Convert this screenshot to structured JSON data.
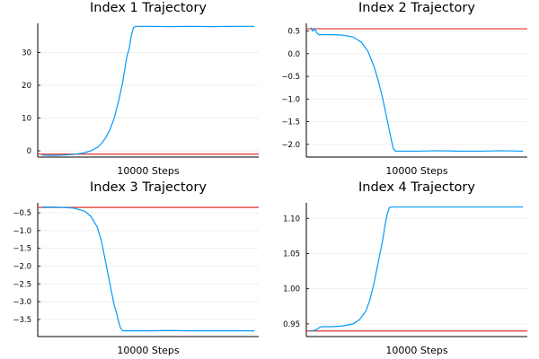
{
  "colors": {
    "series": "#009AFA",
    "reference": "#E0302A"
  },
  "chart_data": [
    {
      "type": "line",
      "title": "Index 1 Trajectory",
      "xlabel": "10000 Steps",
      "ylabel": "",
      "ylim": [
        -1.9,
        38.9
      ],
      "yticks": [
        0,
        10,
        20,
        30
      ],
      "ytick_labels": [
        "0",
        "10",
        "20",
        "30"
      ],
      "grid": true,
      "x": [
        0,
        0.05,
        0.1,
        0.15,
        0.2,
        0.23,
        0.26,
        0.28,
        0.3,
        0.32,
        0.34,
        0.36,
        0.38,
        0.39,
        0.4,
        0.41,
        0.42,
        0.43,
        0.44,
        0.5,
        0.6,
        0.7,
        0.8,
        0.9,
        1.0
      ],
      "series": [
        {
          "values": [
            -1.3,
            -1.4,
            -1.3,
            -1.1,
            -0.6,
            0.0,
            1.0,
            2.2,
            4.0,
            6.5,
            10.0,
            15.0,
            21.0,
            25.0,
            29.0,
            31.0,
            35.0,
            37.5,
            38.0,
            38.0,
            37.9,
            38.0,
            37.9,
            38.0,
            38.0
          ]
        }
      ],
      "reference": -1.0
    },
    {
      "type": "line",
      "title": "Index 2 Trajectory",
      "xlabel": "10000 Steps",
      "ylabel": "",
      "ylim": [
        -2.28,
        0.67
      ],
      "yticks": [
        -2.0,
        -1.5,
        -1.0,
        -0.5,
        0.0,
        0.5
      ],
      "ytick_labels": [
        "−2.0",
        "−1.5",
        "−1.0",
        "−0.5",
        "0.0",
        "0.5"
      ],
      "grid": true,
      "x": [
        0,
        0.01,
        0.02,
        0.03,
        0.04,
        0.06,
        0.1,
        0.15,
        0.2,
        0.24,
        0.27,
        0.3,
        0.32,
        0.34,
        0.36,
        0.38,
        0.39,
        0.4,
        0.41,
        0.5,
        0.6,
        0.7,
        0.8,
        0.9,
        1.0
      ],
      "series": [
        {
          "values": [
            0.58,
            0.5,
            0.55,
            0.45,
            0.42,
            0.42,
            0.42,
            0.41,
            0.37,
            0.25,
            0.05,
            -0.3,
            -0.62,
            -1.0,
            -1.45,
            -1.9,
            -2.1,
            -2.15,
            -2.15,
            -2.15,
            -2.14,
            -2.15,
            -2.15,
            -2.14,
            -2.15
          ]
        }
      ],
      "reference": 0.55
    },
    {
      "type": "line",
      "title": "Index 3 Trajectory",
      "xlabel": "10000 Steps",
      "ylabel": "",
      "ylim": [
        -3.98,
        -0.22
      ],
      "yticks": [
        -3.5,
        -3.0,
        -2.5,
        -2.0,
        -1.5,
        -1.0,
        -0.5
      ],
      "ytick_labels": [
        "−3.5",
        "−3.0",
        "−2.5",
        "−2.0",
        "−1.5",
        "−1.0",
        "−0.5"
      ],
      "grid": true,
      "x": [
        0,
        0.05,
        0.1,
        0.15,
        0.2,
        0.23,
        0.26,
        0.28,
        0.3,
        0.32,
        0.34,
        0.35,
        0.36,
        0.37,
        0.38,
        0.4,
        0.5,
        0.6,
        0.7,
        0.8,
        0.9,
        1.0
      ],
      "series": [
        {
          "values": [
            -0.34,
            -0.34,
            -0.35,
            -0.37,
            -0.45,
            -0.6,
            -0.9,
            -1.3,
            -1.9,
            -2.5,
            -3.1,
            -3.3,
            -3.55,
            -3.75,
            -3.82,
            -3.82,
            -3.82,
            -3.81,
            -3.82,
            -3.82,
            -3.82,
            -3.82
          ]
        }
      ],
      "reference": -0.35
    },
    {
      "type": "line",
      "title": "Index 4 Trajectory",
      "xlabel": "10000 Steps",
      "ylabel": "",
      "ylim": [
        0.932,
        1.122
      ],
      "yticks": [
        0.95,
        1.0,
        1.05,
        1.1
      ],
      "ytick_labels": [
        "0.95",
        "1.00",
        "1.05",
        "1.10"
      ],
      "grid": true,
      "x": [
        0,
        0.02,
        0.05,
        0.1,
        0.15,
        0.2,
        0.23,
        0.26,
        0.28,
        0.3,
        0.32,
        0.34,
        0.35,
        0.36,
        0.37,
        0.38,
        0.4,
        0.5,
        0.6,
        0.7,
        0.8,
        0.9,
        1.0
      ],
      "series": [
        {
          "values": [
            0.94,
            0.941,
            0.946,
            0.946,
            0.947,
            0.95,
            0.956,
            0.968,
            0.985,
            1.01,
            1.04,
            1.07,
            1.09,
            1.105,
            1.115,
            1.116,
            1.116,
            1.116,
            1.116,
            1.116,
            1.116,
            1.116,
            1.116
          ]
        }
      ],
      "reference": 0.94
    }
  ]
}
